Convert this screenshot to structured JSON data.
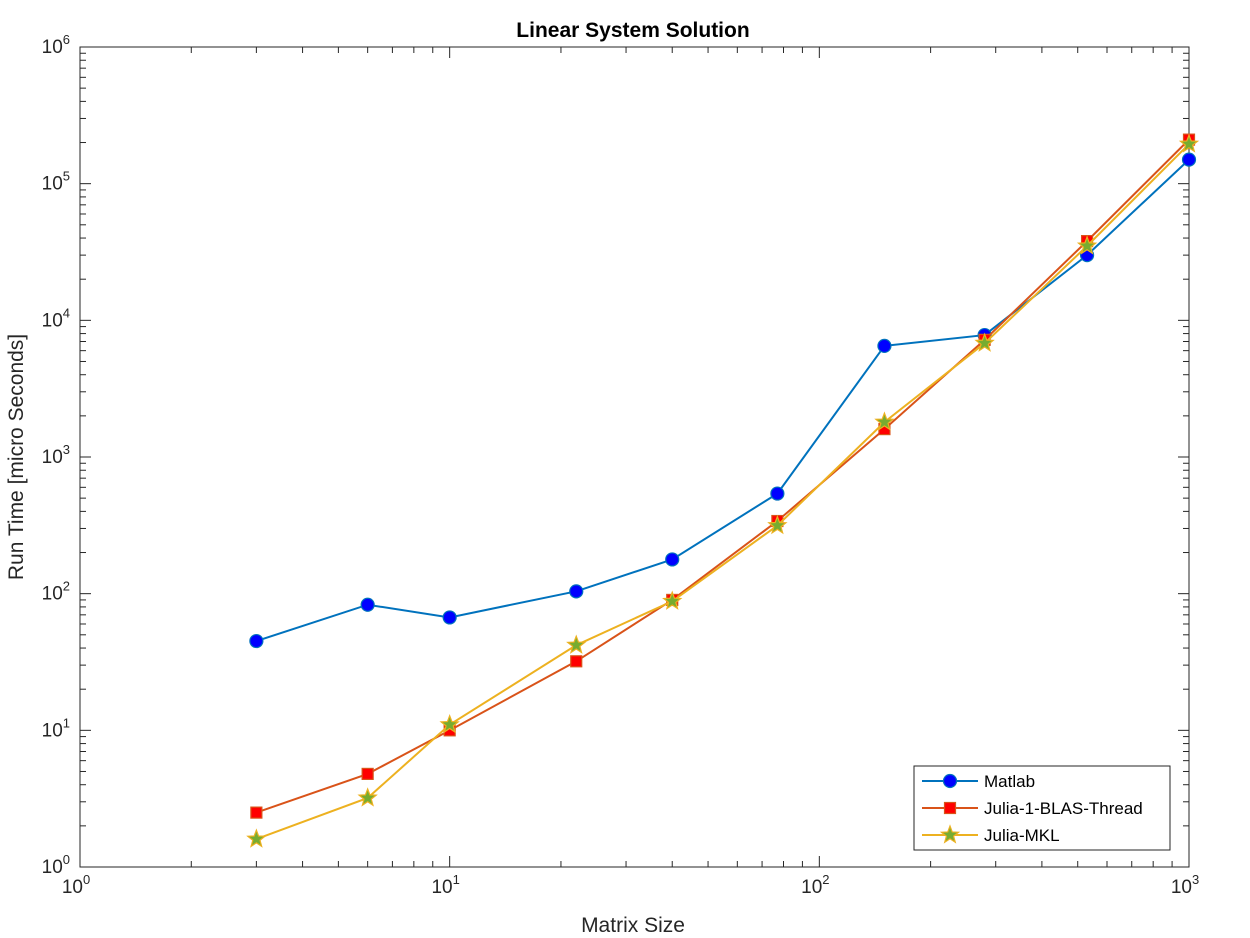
{
  "chart_data": {
    "type": "line",
    "title": "Linear System Solution",
    "xlabel": "Matrix Size",
    "ylabel": "Run Time  [micro Seconds]",
    "xscale": "log",
    "yscale": "log",
    "xlim": [
      1,
      1000
    ],
    "ylim": [
      1,
      1000000
    ],
    "x_ticks": [
      {
        "base": "10",
        "exp": "0",
        "value": 1
      },
      {
        "base": "10",
        "exp": "1",
        "value": 10
      },
      {
        "base": "10",
        "exp": "2",
        "value": 100
      },
      {
        "base": "10",
        "exp": "3",
        "value": 1000
      }
    ],
    "y_ticks": [
      {
        "base": "10",
        "exp": "0",
        "value": 1
      },
      {
        "base": "10",
        "exp": "1",
        "value": 10
      },
      {
        "base": "10",
        "exp": "2",
        "value": 100
      },
      {
        "base": "10",
        "exp": "3",
        "value": 1000
      },
      {
        "base": "10",
        "exp": "4",
        "value": 10000
      },
      {
        "base": "10",
        "exp": "5",
        "value": 100000
      },
      {
        "base": "10",
        "exp": "6",
        "value": 1000000
      }
    ],
    "grid": false,
    "legend_position": "bottom-right",
    "x": [
      3,
      6,
      10,
      22,
      40,
      77,
      150,
      280,
      530,
      1000
    ],
    "series": [
      {
        "name": "Matlab",
        "marker": "circle",
        "color": "#0072BD",
        "marker_fill": "#0000FF",
        "values": [
          45,
          83,
          67,
          104,
          178,
          540,
          6500,
          7800,
          30000,
          150000
        ]
      },
      {
        "name": "Julia-1-BLAS-Thread",
        "marker": "square",
        "color": "#D95319",
        "marker_fill": "#FF0000",
        "values": [
          2.5,
          4.8,
          10,
          32,
          90,
          340,
          1600,
          7200,
          38000,
          210000
        ]
      },
      {
        "name": "Julia-MKL",
        "marker": "star",
        "color": "#EDB120",
        "marker_fill": "#77AC30",
        "values": [
          1.6,
          3.2,
          11,
          42,
          88,
          315,
          1800,
          6800,
          35000,
          195000
        ]
      }
    ]
  }
}
